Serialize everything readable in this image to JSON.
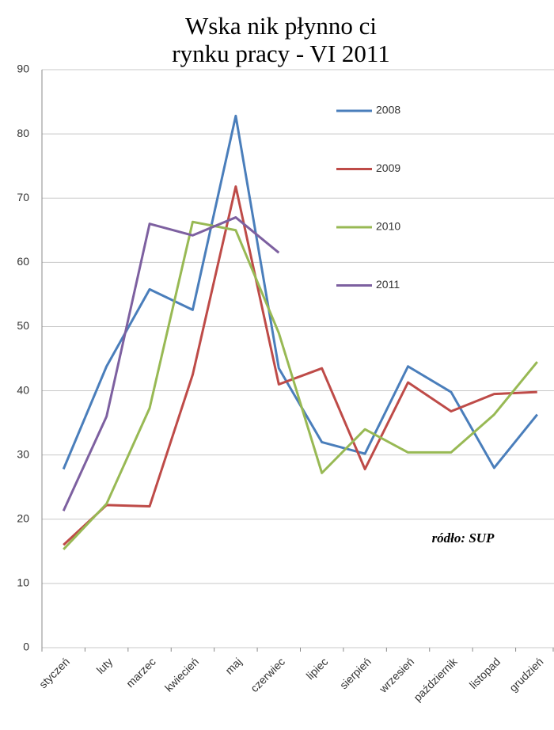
{
  "chart_data": {
    "type": "line",
    "title": [
      "Wska  nik płynno  ci",
      "rynku pracy - VI 2011"
    ],
    "annotation": "ródło: SUP",
    "categories": [
      "styczeń",
      "luty",
      "marzec",
      "kwiecień",
      "maj",
      "czerwiec",
      "lipiec",
      "sierpień",
      "wrzesień",
      "październik",
      "listopad",
      "grudzień"
    ],
    "series": [
      {
        "name": "2008",
        "color": "#4a7ebb",
        "values": [
          27.8,
          43.8,
          55.8,
          52.6,
          82.8,
          43.5,
          32.0,
          30.2,
          43.8,
          39.8,
          28.0,
          36.3
        ]
      },
      {
        "name": "2009",
        "color": "#be4b48",
        "values": [
          16.0,
          22.2,
          22.0,
          42.5,
          71.8,
          41.0,
          43.5,
          27.8,
          41.3,
          36.8,
          39.5,
          39.8
        ]
      },
      {
        "name": "2010",
        "color": "#98b954",
        "values": [
          15.3,
          22.4,
          37.3,
          66.3,
          65.0,
          49.0,
          27.2,
          34.0,
          30.4,
          30.4,
          36.3,
          44.5
        ]
      },
      {
        "name": "2011",
        "color": "#7d60a0",
        "values": [
          21.3,
          36.0,
          66.0,
          64.2,
          67.0,
          61.5,
          null,
          null,
          null,
          null,
          null,
          null
        ]
      }
    ],
    "ylim": [
      0,
      90
    ],
    "yticks": [
      0,
      10,
      20,
      30,
      40,
      50,
      60,
      70,
      80,
      90
    ],
    "grid": true
  }
}
